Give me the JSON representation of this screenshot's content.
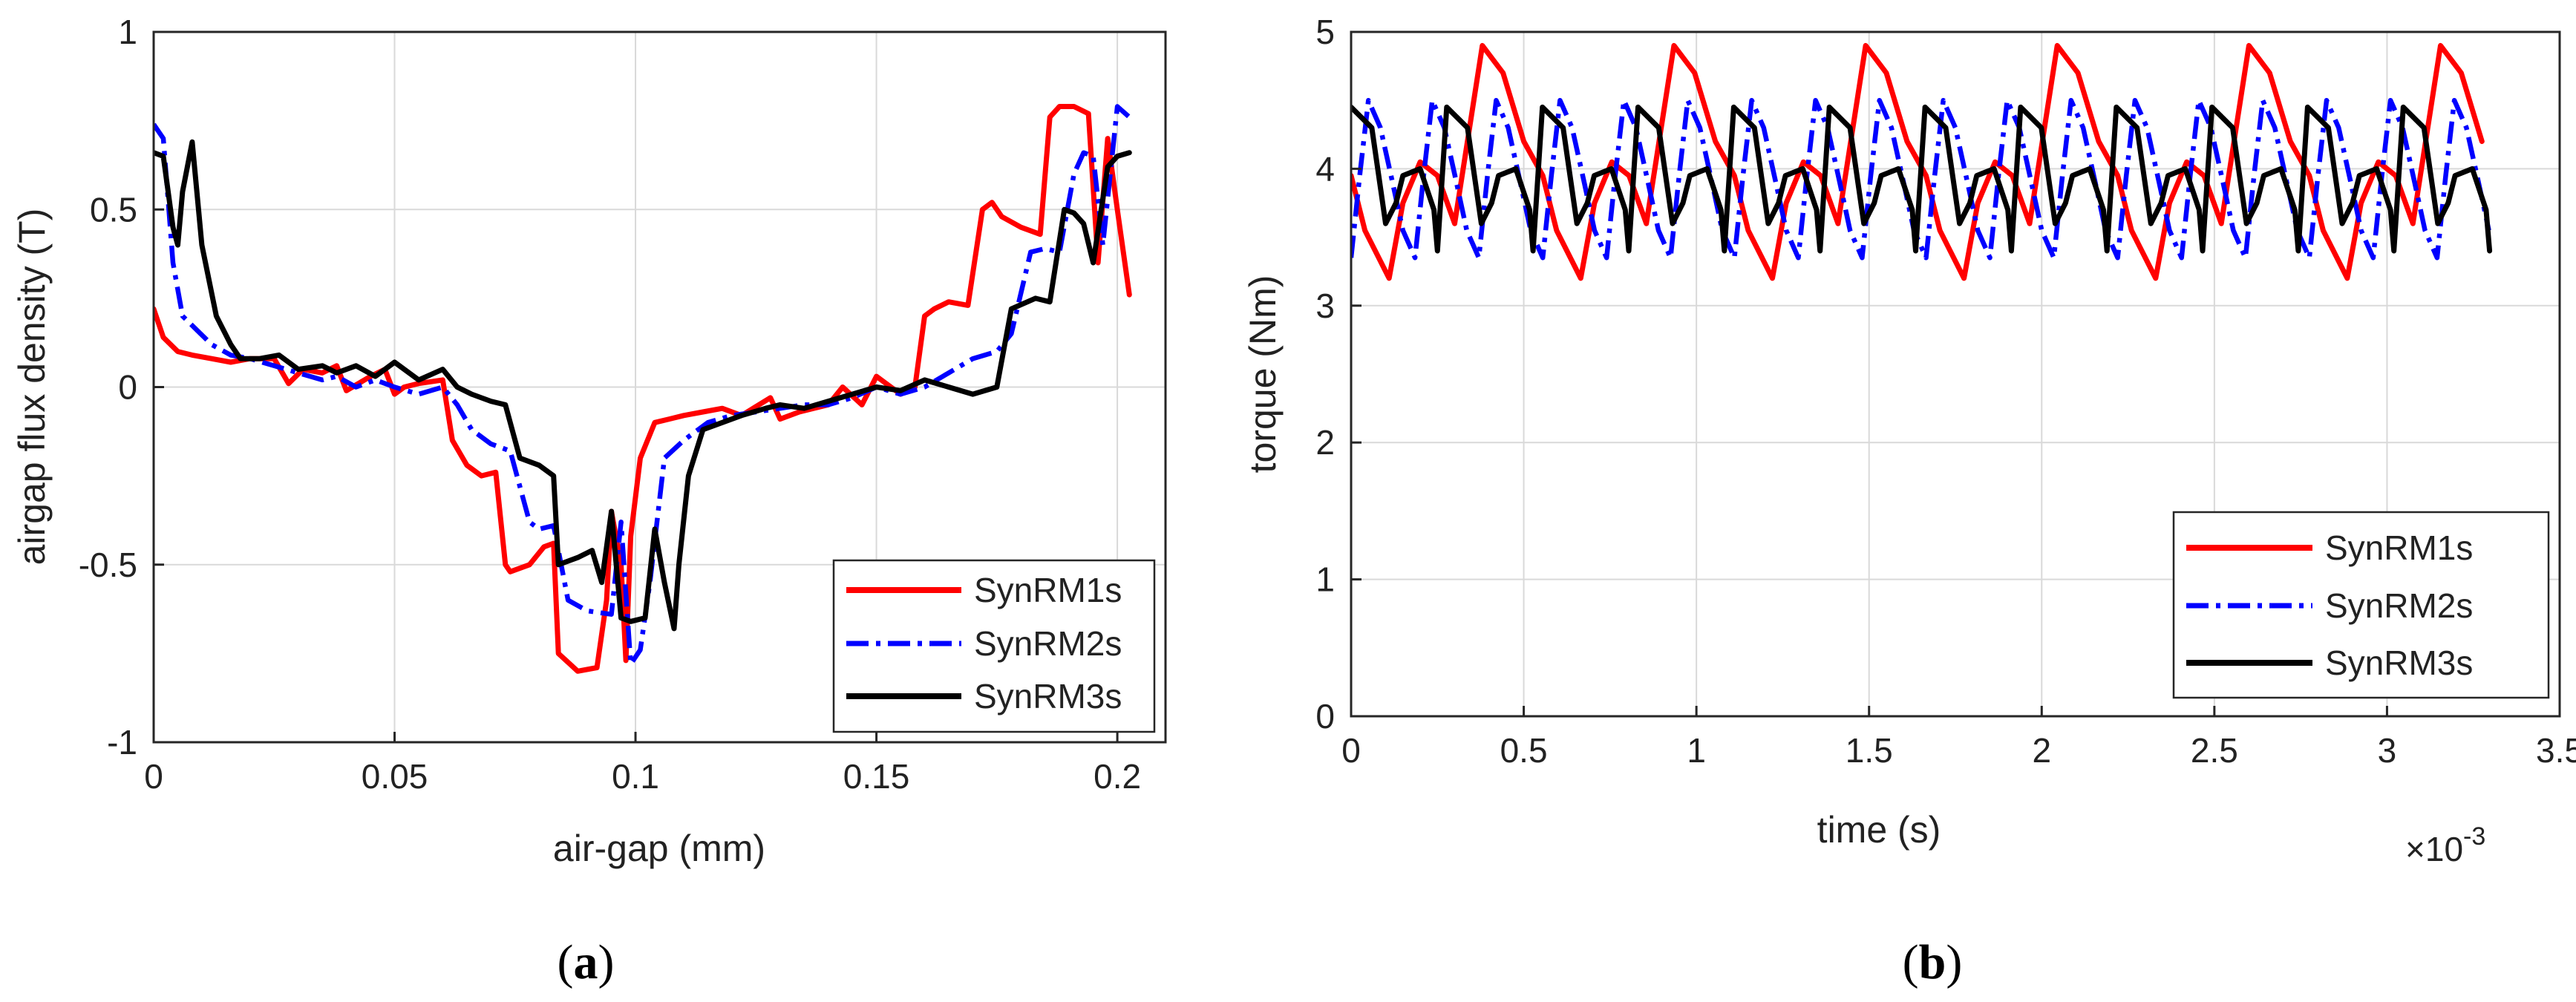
{
  "chart_data": [
    {
      "id": "a",
      "type": "line",
      "caption": "(a)",
      "xlabel": "air-gap (mm)",
      "ylabel": "airgap flux density (T)",
      "xlim": [
        0,
        0.21
      ],
      "ylim": [
        -1,
        1
      ],
      "xticks": [
        0,
        0.05,
        0.1,
        0.15,
        0.2
      ],
      "xtick_labels": [
        "0",
        "0.05",
        "0.1",
        "0.15",
        "0.2"
      ],
      "yticks": [
        -1,
        -0.5,
        0,
        0.5,
        1
      ],
      "ytick_labels": [
        "-1",
        "-0.5",
        "0",
        "0.5",
        "1"
      ],
      "grid": true,
      "legend_position": "bottom-right",
      "series": [
        {
          "name": "SynRM1s",
          "color": "#ff0000",
          "style": "solid",
          "x": [
            0,
            0.002,
            0.005,
            0.008,
            0.012,
            0.016,
            0.02,
            0.025,
            0.028,
            0.031,
            0.035,
            0.038,
            0.04,
            0.045,
            0.048,
            0.05,
            0.052,
            0.055,
            0.06,
            0.062,
            0.065,
            0.068,
            0.071,
            0.073,
            0.074,
            0.078,
            0.081,
            0.083,
            0.084,
            0.088,
            0.092,
            0.094,
            0.095,
            0.097,
            0.098,
            0.099,
            0.101,
            0.104,
            0.107,
            0.11,
            0.114,
            0.118,
            0.122,
            0.128,
            0.13,
            0.134,
            0.14,
            0.143,
            0.147,
            0.15,
            0.152,
            0.155,
            0.158,
            0.16,
            0.162,
            0.165,
            0.169,
            0.172,
            0.174,
            0.176,
            0.18,
            0.184,
            0.186,
            0.188,
            0.191,
            0.194,
            0.196,
            0.198,
            0.2,
            0.2025
          ],
          "y": [
            0.22,
            0.14,
            0.1,
            0.09,
            0.08,
            0.07,
            0.08,
            0.08,
            0.01,
            0.05,
            0.04,
            0.06,
            -0.01,
            0.03,
            0.05,
            -0.02,
            0.0,
            0.01,
            0.02,
            -0.15,
            -0.22,
            -0.25,
            -0.24,
            -0.5,
            -0.52,
            -0.5,
            -0.45,
            -0.44,
            -0.75,
            -0.8,
            -0.79,
            -0.6,
            -0.35,
            -0.5,
            -0.77,
            -0.42,
            -0.2,
            -0.1,
            -0.09,
            -0.08,
            -0.07,
            -0.06,
            -0.08,
            -0.03,
            -0.09,
            -0.07,
            -0.05,
            0.0,
            -0.05,
            0.03,
            0.01,
            -0.02,
            0.0,
            0.2,
            0.22,
            0.24,
            0.23,
            0.5,
            0.52,
            0.48,
            0.45,
            0.43,
            0.76,
            0.79,
            0.79,
            0.77,
            0.35,
            0.7,
            0.5,
            0.26
          ]
        },
        {
          "name": "SynRM2s",
          "color": "#0000ff",
          "style": "dashdot",
          "x": [
            0,
            0.002,
            0.004,
            0.006,
            0.009,
            0.012,
            0.016,
            0.02,
            0.025,
            0.03,
            0.035,
            0.038,
            0.042,
            0.046,
            0.05,
            0.055,
            0.06,
            0.063,
            0.066,
            0.07,
            0.074,
            0.078,
            0.08,
            0.083,
            0.086,
            0.09,
            0.095,
            0.097,
            0.099,
            0.101,
            0.103,
            0.106,
            0.11,
            0.115,
            0.12,
            0.125,
            0.13,
            0.135,
            0.14,
            0.145,
            0.15,
            0.155,
            0.16,
            0.165,
            0.17,
            0.175,
            0.178,
            0.182,
            0.185,
            0.188,
            0.191,
            0.193,
            0.195,
            0.197,
            0.2,
            0.2025
          ],
          "y": [
            0.74,
            0.7,
            0.35,
            0.2,
            0.16,
            0.12,
            0.09,
            0.08,
            0.06,
            0.04,
            0.02,
            0.03,
            0.0,
            0.02,
            0.0,
            -0.02,
            0.0,
            -0.05,
            -0.12,
            -0.16,
            -0.18,
            -0.38,
            -0.4,
            -0.39,
            -0.6,
            -0.63,
            -0.64,
            -0.38,
            -0.78,
            -0.74,
            -0.55,
            -0.2,
            -0.15,
            -0.1,
            -0.08,
            -0.07,
            -0.06,
            -0.05,
            -0.05,
            -0.03,
            0.0,
            -0.02,
            0.0,
            0.04,
            0.08,
            0.1,
            0.15,
            0.38,
            0.39,
            0.38,
            0.6,
            0.66,
            0.65,
            0.4,
            0.79,
            0.76
          ]
        },
        {
          "name": "SynRM3s",
          "color": "#000000",
          "style": "solid",
          "x": [
            0,
            0.002,
            0.004,
            0.005,
            0.006,
            0.008,
            0.01,
            0.013,
            0.016,
            0.018,
            0.022,
            0.026,
            0.03,
            0.035,
            0.038,
            0.042,
            0.046,
            0.05,
            0.055,
            0.06,
            0.063,
            0.066,
            0.07,
            0.073,
            0.076,
            0.08,
            0.083,
            0.084,
            0.088,
            0.091,
            0.093,
            0.095,
            0.097,
            0.099,
            0.102,
            0.104,
            0.106,
            0.108,
            0.109,
            0.111,
            0.114,
            0.118,
            0.122,
            0.127,
            0.13,
            0.135,
            0.14,
            0.145,
            0.15,
            0.155,
            0.16,
            0.165,
            0.17,
            0.175,
            0.178,
            0.183,
            0.186,
            0.189,
            0.191,
            0.193,
            0.195,
            0.198,
            0.2,
            0.2025
          ],
          "y": [
            0.66,
            0.65,
            0.45,
            0.4,
            0.55,
            0.69,
            0.4,
            0.2,
            0.12,
            0.08,
            0.08,
            0.09,
            0.05,
            0.06,
            0.04,
            0.06,
            0.03,
            0.07,
            0.02,
            0.05,
            0.0,
            -0.02,
            -0.04,
            -0.05,
            -0.2,
            -0.22,
            -0.25,
            -0.5,
            -0.48,
            -0.46,
            -0.55,
            -0.35,
            -0.65,
            -0.66,
            -0.65,
            -0.4,
            -0.55,
            -0.68,
            -0.5,
            -0.25,
            -0.12,
            -0.1,
            -0.08,
            -0.06,
            -0.05,
            -0.06,
            -0.04,
            -0.02,
            0.0,
            -0.01,
            0.02,
            0.0,
            -0.02,
            0.0,
            0.22,
            0.25,
            0.24,
            0.5,
            0.49,
            0.46,
            0.35,
            0.62,
            0.65,
            0.66
          ]
        }
      ]
    },
    {
      "id": "b",
      "type": "line",
      "caption": "(b)",
      "xlabel": "time (s)",
      "ylabel": "torque (Nm)",
      "x_multiplier": "×10",
      "x_multiplier_exponent": "-3",
      "xlim": [
        0,
        3.5
      ],
      "ylim": [
        0,
        5
      ],
      "xticks": [
        0,
        0.5,
        1,
        1.5,
        2,
        2.5,
        3,
        3.5
      ],
      "xtick_labels": [
        "0",
        "0.5",
        "1",
        "1.5",
        "2",
        "2.5",
        "3",
        "3.5"
      ],
      "yticks": [
        0,
        1,
        2,
        3,
        4,
        5
      ],
      "ytick_labels": [
        "0",
        "1",
        "2",
        "3",
        "4",
        "5"
      ],
      "grid": true,
      "legend_position": "bottom-right",
      "series": [
        {
          "name": "SynRM1s",
          "color": "#ff0000",
          "style": "solid",
          "period": 0.555,
          "x_start": 0,
          "x_end": 3.32,
          "wave": [
            [
              0,
              3.95
            ],
            [
              0.04,
              3.55
            ],
            [
              0.11,
              3.2
            ],
            [
              0.15,
              3.75
            ],
            [
              0.2,
              4.05
            ],
            [
              0.25,
              3.95
            ],
            [
              0.3,
              3.6
            ],
            [
              0.38,
              4.9
            ],
            [
              0.44,
              4.7
            ],
            [
              0.5,
              4.2
            ],
            [
              0.555,
              3.95
            ]
          ]
        },
        {
          "name": "SynRM2s",
          "color": "#0000ff",
          "style": "dashdot",
          "period": 0.185,
          "x_start": 0,
          "x_end": 3.32,
          "wave": [
            [
              0,
              3.35
            ],
            [
              0.025,
              3.95
            ],
            [
              0.05,
              4.5
            ],
            [
              0.085,
              4.3
            ],
            [
              0.12,
              3.9
            ],
            [
              0.15,
              3.55
            ],
            [
              0.185,
              3.35
            ]
          ]
        },
        {
          "name": "SynRM3s",
          "color": "#000000",
          "style": "solid",
          "period": 0.277,
          "x_start": 0,
          "x_end": 3.32,
          "wave": [
            [
              0,
              4.45
            ],
            [
              0.06,
              4.3
            ],
            [
              0.1,
              3.6
            ],
            [
              0.13,
              3.75
            ],
            [
              0.15,
              3.95
            ],
            [
              0.2,
              4.0
            ],
            [
              0.24,
              3.7
            ],
            [
              0.25,
              3.4
            ],
            [
              0.277,
              4.45
            ]
          ]
        }
      ]
    }
  ]
}
